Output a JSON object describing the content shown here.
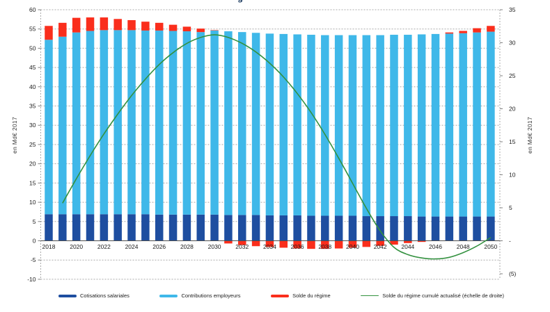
{
  "title_fragment": "g",
  "axes": {
    "left_title": "en Md€ 2017",
    "right_title": "en Md€ 2017",
    "left_ticks": [
      {
        "value": 60,
        "label": "60"
      },
      {
        "value": 55,
        "label": "55"
      },
      {
        "value": 50,
        "label": "50"
      },
      {
        "value": 45,
        "label": "45"
      },
      {
        "value": 40,
        "label": "40"
      },
      {
        "value": 35,
        "label": "35"
      },
      {
        "value": 30,
        "label": "30"
      },
      {
        "value": 25,
        "label": "25"
      },
      {
        "value": 20,
        "label": "20"
      },
      {
        "value": 15,
        "label": "15"
      },
      {
        "value": 10,
        "label": "10"
      },
      {
        "value": 5,
        "label": "5"
      },
      {
        "value": 0,
        "label": "0"
      },
      {
        "value": -5,
        "label": "-5"
      },
      {
        "value": -10,
        "label": "-10"
      }
    ],
    "right_ticks": [
      {
        "value": 35,
        "label": "35"
      },
      {
        "value": 30,
        "label": "30"
      },
      {
        "value": 25,
        "label": "25"
      },
      {
        "value": 20,
        "label": "20"
      },
      {
        "value": 15,
        "label": "15"
      },
      {
        "value": 10,
        "label": "10"
      },
      {
        "value": 5,
        "label": "5"
      },
      {
        "value": 0,
        "label": "-"
      },
      {
        "value": -5,
        "label": "(5)"
      }
    ]
  },
  "legend": {
    "items": [
      {
        "label": "Cotisations salariales",
        "color": "#1E4EA0",
        "thickness": 4
      },
      {
        "label": "Contributions employeurs",
        "color": "#3FB8E9",
        "thickness": 4
      },
      {
        "label": "Solde du régime",
        "color": "#FA2E1C",
        "thickness": 4
      },
      {
        "label": "Solde du régime cumulé actualisé (échelle de droite)",
        "color": "#33913F",
        "thickness": 1.5
      }
    ]
  },
  "chart_data": {
    "type": "bar",
    "subtype": "stacked bars with overlay line on secondary axis",
    "categories": [
      2018,
      2019,
      2020,
      2021,
      2022,
      2023,
      2024,
      2025,
      2026,
      2027,
      2028,
      2029,
      2030,
      2031,
      2032,
      2033,
      2034,
      2035,
      2036,
      2037,
      2038,
      2039,
      2040,
      2041,
      2042,
      2043,
      2044,
      2045,
      2046,
      2047,
      2048,
      2049,
      2050
    ],
    "x_tick_labels": [
      "2018",
      "2020",
      "2022",
      "2024",
      "2026",
      "2028",
      "2030",
      "2032",
      "2034",
      "2036",
      "2038",
      "2040",
      "2042",
      "2044",
      "2046",
      "2048",
      "2050"
    ],
    "left_axis": {
      "min": -10,
      "max": 60,
      "step": 5,
      "title": "en Md€ 2017"
    },
    "right_axis": {
      "min": -5,
      "max": 35,
      "step": 5,
      "title": "en Md€ 2017"
    },
    "grid": true,
    "legend_position": "bottom",
    "series": [
      {
        "name": "Cotisations salariales",
        "type": "bar",
        "axis": "left",
        "color": "#1E4EA0",
        "values": [
          6.9,
          6.9,
          6.9,
          6.9,
          6.9,
          6.9,
          6.9,
          6.9,
          6.8,
          6.8,
          6.8,
          6.8,
          6.8,
          6.7,
          6.7,
          6.7,
          6.6,
          6.6,
          6.6,
          6.5,
          6.5,
          6.5,
          6.5,
          6.4,
          6.4,
          6.4,
          6.4,
          6.3,
          6.3,
          6.3,
          6.3,
          6.3,
          6.3
        ]
      },
      {
        "name": "Contributions employeurs",
        "type": "bar",
        "axis": "left",
        "color": "#3FB8E9",
        "values": [
          45.3,
          46.1,
          47.2,
          47.6,
          47.8,
          47.8,
          47.8,
          47.7,
          47.8,
          47.7,
          47.6,
          47.4,
          47.8,
          47.7,
          47.5,
          47.3,
          47.2,
          47.1,
          47.0,
          47.0,
          46.9,
          46.9,
          46.9,
          47.0,
          47.0,
          47.1,
          47.1,
          47.3,
          47.4,
          47.5,
          47.6,
          47.8,
          48.0
        ]
      },
      {
        "name": "Solde du régime",
        "type": "bar",
        "axis": "left",
        "color": "#FA2E1C",
        "values": [
          3.6,
          3.6,
          3.8,
          3.5,
          3.3,
          2.9,
          2.6,
          2.3,
          2.0,
          1.6,
          1.2,
          0.9,
          0.1,
          -0.7,
          -1.1,
          -1.4,
          -1.6,
          -1.8,
          -2.0,
          -2.1,
          -2.1,
          -2.0,
          -1.8,
          -1.6,
          -1.3,
          -1.0,
          -0.6,
          -0.3,
          0.0,
          0.3,
          0.6,
          1.1,
          1.5
        ]
      },
      {
        "name": "Solde du régime cumulé actualisé (échelle de droite)",
        "type": "line",
        "axis": "right",
        "color": "#33913F",
        "values": [
          null,
          5.7,
          9.4,
          12.9,
          16.2,
          19.2,
          22.0,
          24.5,
          26.7,
          28.5,
          29.9,
          30.8,
          31.2,
          30.8,
          29.9,
          28.6,
          26.9,
          24.8,
          22.3,
          19.4,
          16.1,
          12.5,
          8.7,
          4.9,
          1.5,
          -1.0,
          -2.1,
          -2.6,
          -2.75,
          -2.5,
          -1.8,
          -0.8,
          0.5
        ]
      }
    ]
  }
}
